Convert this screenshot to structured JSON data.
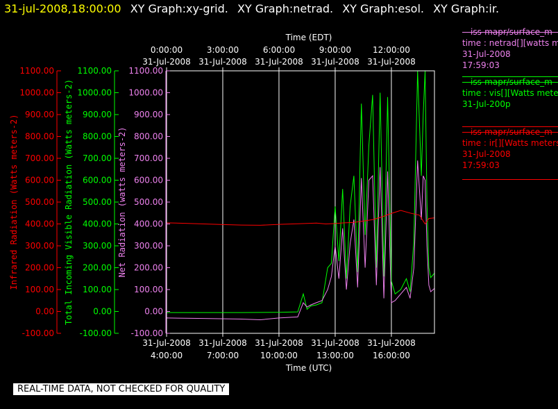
{
  "header": {
    "timestamp": "31-jul-2008,18:00:00",
    "graphs": [
      "XY Graph:xy-grid.",
      "XY Graph:netrad.",
      "XY Graph:esol.",
      "XY Graph:ir."
    ]
  },
  "legend": [
    {
      "lines": [
        "—iss-mapr/surface_m",
        "time : netrad[][watts m",
        "31-Jul-2008",
        "17:59:03"
      ],
      "color": "#ee82ee"
    },
    {
      "lines": [
        "—iss-mapr/surface_m",
        "time : vis[][Watts meter",
        "31-Jul-200p"
      ],
      "color": "#00ff00"
    },
    {
      "lines": [
        "—iss-mapr/surface_m",
        "time : ir[][Watts meters",
        "31-Jul-2008",
        "17:59:03"
      ],
      "color": "#ff0000"
    }
  ],
  "banner": "REAL-TIME DATA, NOT CHECKED FOR QUALITY",
  "chart_data": {
    "type": "line",
    "x_top_title": "Time (EDT)",
    "x_bottom_title": "Time (UTC)",
    "x_top_ticks": [
      {
        "date": "31-Jul-2008",
        "time": "0:00:00"
      },
      {
        "date": "31-Jul-2008",
        "time": "3:00:00"
      },
      {
        "date": "31-Jul-2008",
        "time": "6:00:00"
      },
      {
        "date": "31-Jul-2008",
        "time": "9:00:00"
      },
      {
        "date": "31-Jul-2008",
        "time": "12:00:00"
      }
    ],
    "x_bottom_ticks": [
      {
        "date": "31-Jul-2008",
        "time": "4:00:00"
      },
      {
        "date": "31-Jul-2008",
        "time": "7:00:00"
      },
      {
        "date": "31-Jul-2008",
        "time": "10:00:00"
      },
      {
        "date": "31-Jul-2008",
        "time": "13:00:00"
      },
      {
        "date": "31-Jul-2008",
        "time": "16:00:00"
      }
    ],
    "xlim_utc_hours": [
      4.0,
      18.3
    ],
    "ylim": [
      -100,
      1100
    ],
    "y_ticks": [
      -100,
      0,
      100,
      200,
      300,
      400,
      500,
      600,
      700,
      800,
      900,
      1000,
      1100
    ],
    "y_tick_labels": [
      "-100.00",
      "0.00",
      "100.00",
      "200.00",
      "300.00",
      "400.00",
      "500.00",
      "600.00",
      "700.00",
      "800.00",
      "900.00",
      "1000.00",
      "1100.00"
    ],
    "y_axis_labels": {
      "ir": "Infrared Radiation (Watts meters-2)",
      "vis": "Total Incoming Visible Radiation (Watts meters-2)",
      "netrad": "Net Radiation (watts meters-2)"
    },
    "grid": true,
    "series": [
      {
        "key": "ir",
        "color": "#ff0000",
        "x": [
          4.0,
          5.0,
          6.0,
          7.0,
          8.0,
          9.0,
          10.0,
          11.0,
          12.0,
          12.5,
          13.0,
          13.5,
          14.0,
          14.5,
          15.0,
          15.5,
          16.0,
          16.5,
          17.0,
          17.5,
          17.8,
          18.0,
          18.3
        ],
        "y": [
          405,
          403,
          400,
          397,
          395,
          394,
          398,
          401,
          404,
          400,
          402,
          405,
          407,
          413,
          420,
          432,
          448,
          462,
          450,
          440,
          400,
          425,
          428
        ]
      },
      {
        "key": "vis",
        "color": "#00ff00",
        "x": [
          4.0,
          8.0,
          10.0,
          11.0,
          11.3,
          11.5,
          11.7,
          12.0,
          12.3,
          12.6,
          12.8,
          13.0,
          13.2,
          13.4,
          13.6,
          13.8,
          14.0,
          14.2,
          14.4,
          14.6,
          14.8,
          15.0,
          15.2,
          15.4,
          15.5,
          15.6,
          15.8,
          16.0,
          16.2,
          16.5,
          16.8,
          17.0,
          17.2,
          17.4,
          17.6,
          17.7,
          17.8,
          17.9,
          18.0,
          18.1,
          18.3
        ],
        "y": [
          -5,
          -5,
          -4,
          -2,
          80,
          10,
          25,
          30,
          40,
          200,
          220,
          480,
          230,
          560,
          150,
          480,
          620,
          180,
          950,
          350,
          760,
          990,
          200,
          1000,
          600,
          160,
          980,
          140,
          80,
          100,
          150,
          90,
          320,
          1100,
          620,
          900,
          1100,
          500,
          200,
          155,
          175
        ]
      },
      {
        "key": "netrad",
        "color": "#ee82ee",
        "x": [
          4.0,
          6.0,
          8.0,
          9.0,
          10.0,
          11.0,
          11.3,
          11.5,
          11.7,
          12.0,
          12.3,
          12.6,
          12.8,
          13.0,
          13.2,
          13.4,
          13.6,
          13.8,
          14.0,
          14.2,
          14.4,
          14.6,
          14.8,
          15.0,
          15.2,
          15.4,
          15.5,
          15.6,
          15.8,
          16.0,
          16.2,
          16.5,
          16.8,
          17.0,
          17.2,
          17.4,
          17.6,
          17.7,
          17.8,
          17.9,
          18.0,
          18.1,
          18.3
        ],
        "y": [
          -30,
          -32,
          -35,
          -38,
          -30,
          -25,
          40,
          20,
          30,
          40,
          50,
          100,
          160,
          300,
          150,
          380,
          100,
          310,
          420,
          110,
          610,
          200,
          600,
          620,
          120,
          660,
          380,
          60,
          640,
          40,
          50,
          80,
          110,
          60,
          200,
          690,
          420,
          620,
          600,
          300,
          120,
          90,
          105
        ]
      }
    ]
  }
}
